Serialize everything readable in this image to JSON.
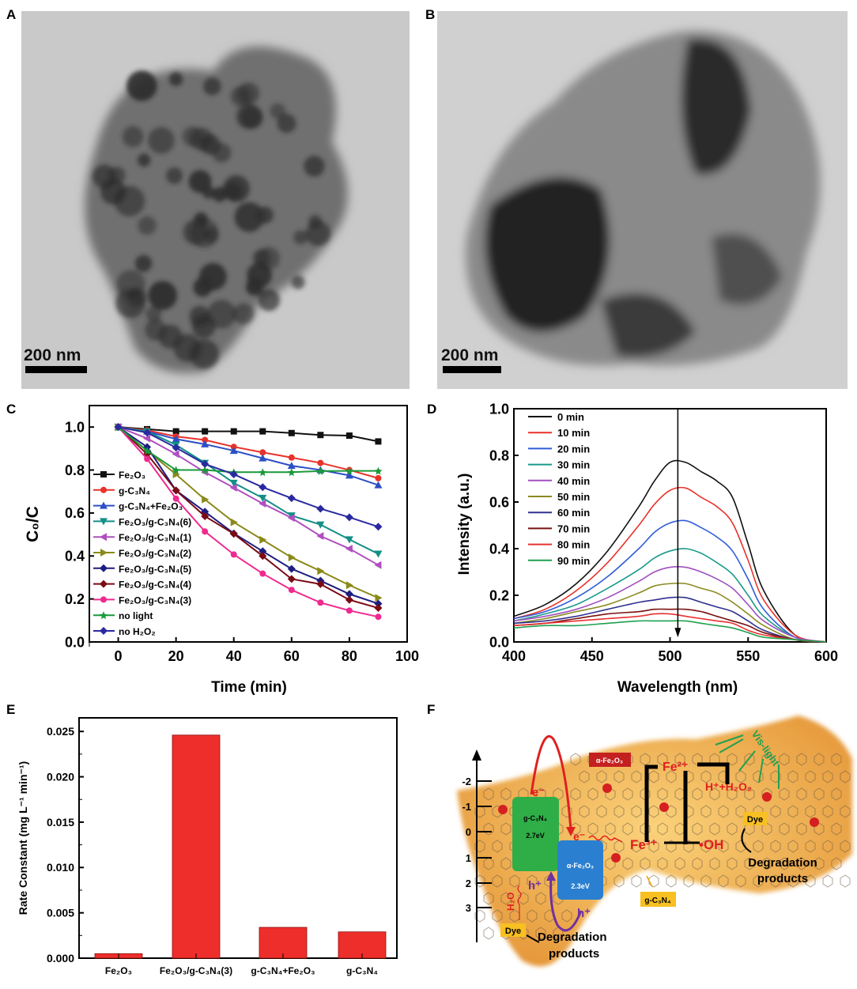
{
  "panels": {
    "A": {
      "label": "A",
      "scale_bar": "200 nm"
    },
    "B": {
      "label": "B",
      "scale_bar": "200 nm"
    },
    "C": {
      "label": "C"
    },
    "D": {
      "label": "D"
    },
    "E": {
      "label": "E"
    },
    "F": {
      "label": "F"
    }
  },
  "chart_data": [
    {
      "panel": "C",
      "type": "line",
      "xlabel": "Time (min)",
      "ylabel": "C₀/C",
      "xlim": [
        -10,
        100
      ],
      "ylim": [
        0,
        1.1
      ],
      "xticks": [
        "0",
        "20",
        "40",
        "60",
        "80",
        "100"
      ],
      "yticks": [
        "0.0",
        "0.2",
        "0.4",
        "0.6",
        "0.8",
        "1.0"
      ],
      "legend_position": "left",
      "x": [
        0,
        10,
        20,
        30,
        40,
        50,
        60,
        70,
        80,
        90
      ],
      "series": [
        {
          "name": "Fe₂O₃",
          "color": "#111111",
          "marker": "square",
          "values": [
            1.0,
            0.99,
            0.98,
            0.98,
            0.98,
            0.98,
            0.972,
            0.963,
            0.96,
            0.933
          ]
        },
        {
          "name": "g-C₃N₄",
          "color": "#e8322a",
          "marker": "circle",
          "values": [
            1.0,
            0.985,
            0.956,
            0.94,
            0.908,
            0.882,
            0.858,
            0.833,
            0.8,
            0.762
          ]
        },
        {
          "name": "g-C₃N₄+Fe₂O₃",
          "color": "#2b4fc4",
          "marker": "triangle-up",
          "values": [
            1.0,
            0.98,
            0.944,
            0.92,
            0.89,
            0.855,
            0.82,
            0.8,
            0.775,
            0.73
          ]
        },
        {
          "name": "Fe₂O₃/g-C₃N₄(6)",
          "color": "#138f86",
          "marker": "triangle-down",
          "values": [
            1.0,
            0.98,
            0.917,
            0.833,
            0.74,
            0.67,
            0.588,
            0.546,
            0.477,
            0.41
          ]
        },
        {
          "name": "Fe₂O₃/g-C₃N₄(1)",
          "color": "#b04fc0",
          "marker": "triangle-left",
          "values": [
            1.0,
            0.947,
            0.874,
            0.79,
            0.718,
            0.644,
            0.577,
            0.493,
            0.434,
            0.358
          ]
        },
        {
          "name": "Fe₂O₃/g-C₃N₄(2)",
          "color": "#8a8a1a",
          "marker": "triangle-right",
          "values": [
            1.0,
            0.89,
            0.78,
            0.663,
            0.557,
            0.475,
            0.393,
            0.33,
            0.264,
            0.205
          ]
        },
        {
          "name": "Fe₂O₃/g-C₃N₄(5)",
          "color": "#1d1d80",
          "marker": "diamond",
          "values": [
            1.0,
            0.907,
            0.705,
            0.606,
            0.505,
            0.422,
            0.34,
            0.285,
            0.223,
            0.178
          ]
        },
        {
          "name": "Fe₂O₃/g-C₃N₄(4)",
          "color": "#7a0a14",
          "marker": "diamond",
          "values": [
            1.0,
            0.874,
            0.705,
            0.585,
            0.503,
            0.4,
            0.293,
            0.269,
            0.196,
            0.158
          ]
        },
        {
          "name": "Fe₂O₃/g-C₃N₄(3)",
          "color": "#ee2a8f",
          "marker": "circle",
          "values": [
            1.0,
            0.852,
            0.667,
            0.514,
            0.407,
            0.318,
            0.242,
            0.183,
            0.146,
            0.117
          ]
        },
        {
          "name": "no  light",
          "color": "#1a9a3a",
          "marker": "star",
          "values": [
            1.0,
            0.89,
            0.8,
            0.8,
            0.79,
            0.79,
            0.79,
            0.795,
            0.796,
            0.796
          ]
        },
        {
          "name": "no  H₂O₂",
          "color": "#2a2aa0",
          "marker": "hexagon",
          "values": [
            1.0,
            0.974,
            0.904,
            0.828,
            0.78,
            0.72,
            0.669,
            0.62,
            0.58,
            0.536
          ]
        }
      ]
    },
    {
      "panel": "D",
      "type": "line",
      "xlabel": "Wavelength (nm)",
      "ylabel": "Intensity (a.u.)",
      "xlim": [
        400,
        600
      ],
      "ylim": [
        0,
        1.0
      ],
      "xticks": [
        "400",
        "450",
        "500",
        "550",
        "600"
      ],
      "yticks": [
        "0.0",
        "0.2",
        "0.4",
        "0.6",
        "0.8",
        "1.0"
      ],
      "legend_position": "top-left",
      "arrow_wavelength": 505,
      "x": [
        400,
        420,
        440,
        460,
        480,
        490,
        500,
        510,
        520,
        530,
        540,
        550,
        560,
        580,
        600
      ],
      "series": [
        {
          "name": "0 min",
          "color": "#111111",
          "values": [
            0.11,
            0.16,
            0.25,
            0.39,
            0.58,
            0.69,
            0.77,
            0.77,
            0.73,
            0.69,
            0.62,
            0.42,
            0.22,
            0.03,
            0
          ]
        },
        {
          "name": "10 min",
          "color": "#e8322a",
          "values": [
            0.1,
            0.14,
            0.22,
            0.34,
            0.5,
            0.59,
            0.65,
            0.66,
            0.62,
            0.58,
            0.51,
            0.35,
            0.18,
            0.03,
            0
          ]
        },
        {
          "name": "20 min",
          "color": "#2f5cd8",
          "values": [
            0.1,
            0.13,
            0.19,
            0.28,
            0.4,
            0.47,
            0.51,
            0.52,
            0.49,
            0.45,
            0.39,
            0.27,
            0.14,
            0.02,
            0
          ]
        },
        {
          "name": "30 min",
          "color": "#1a9a8a",
          "values": [
            0.09,
            0.12,
            0.16,
            0.23,
            0.31,
            0.36,
            0.39,
            0.4,
            0.38,
            0.34,
            0.29,
            0.2,
            0.11,
            0.02,
            0
          ]
        },
        {
          "name": "40 min",
          "color": "#a050c0",
          "values": [
            0.09,
            0.11,
            0.14,
            0.19,
            0.26,
            0.3,
            0.32,
            0.32,
            0.3,
            0.27,
            0.23,
            0.16,
            0.09,
            0.02,
            0
          ]
        },
        {
          "name": "50 min",
          "color": "#8a8a20",
          "values": [
            0.08,
            0.1,
            0.13,
            0.16,
            0.21,
            0.24,
            0.25,
            0.25,
            0.23,
            0.21,
            0.17,
            0.12,
            0.07,
            0.01,
            0
          ]
        },
        {
          "name": "60 min",
          "color": "#303090",
          "values": [
            0.08,
            0.09,
            0.11,
            0.14,
            0.17,
            0.18,
            0.19,
            0.19,
            0.17,
            0.15,
            0.13,
            0.09,
            0.05,
            0.01,
            0
          ]
        },
        {
          "name": "70 min",
          "color": "#7a1010",
          "values": [
            0.07,
            0.08,
            0.1,
            0.12,
            0.13,
            0.14,
            0.14,
            0.14,
            0.13,
            0.11,
            0.09,
            0.07,
            0.04,
            0.01,
            0
          ]
        },
        {
          "name": "80 min",
          "color": "#e83030",
          "values": [
            0.07,
            0.08,
            0.09,
            0.1,
            0.11,
            0.12,
            0.12,
            0.11,
            0.1,
            0.09,
            0.08,
            0.05,
            0.03,
            0.01,
            0
          ]
        },
        {
          "name": "90 min",
          "color": "#20a050",
          "values": [
            0.06,
            0.07,
            0.07,
            0.08,
            0.09,
            0.09,
            0.09,
            0.09,
            0.08,
            0.07,
            0.06,
            0.04,
            0.02,
            0.01,
            0
          ]
        }
      ]
    },
    {
      "panel": "E",
      "type": "bar",
      "xlabel": "",
      "ylabel": "Rate Constant (mg L⁻¹ min⁻¹)",
      "ylim": [
        0,
        0.0265
      ],
      "yticks": [
        "0.000",
        "0.005",
        "0.010",
        "0.015",
        "0.020",
        "0.025"
      ],
      "categories": [
        "Fe₂O₃",
        "Fe₂O₃/g-C₃N₄(3)",
        "g-C₃N₄+Fe₂O₃",
        "g-C₃N₄"
      ],
      "values": [
        0.0005,
        0.0246,
        0.0034,
        0.0029
      ],
      "color": "#ee2e2a"
    }
  ],
  "diagram": {
    "axis_ticks": [
      "-2",
      "-1",
      "0",
      "1",
      "2",
      "3"
    ],
    "electron": "e⁻",
    "electron2": "e⁻",
    "gcn_box": {
      "name": "g-C₃N₄",
      "gap": "2.7eV",
      "color": "#2fae48"
    },
    "fe_box": {
      "name": "α-Fe₂O₃",
      "gap": "2.3eV",
      "color": "#2a7fd0"
    },
    "fe_label": "α-Fe₂O₃",
    "fe2": "Fe²⁺",
    "fe3": "Fe³⁺",
    "oh": "•OH",
    "h_h2o2": "H⁺+H₂O₂",
    "vis_light": "Vis-light",
    "dye_right": "Dye",
    "dye_left": "Dye",
    "degradation_right_1": "Degradation",
    "degradation_right_2": "products",
    "degradation_left_1": "Degradation",
    "degradation_left_2": "products",
    "gcn_label": "g-C₃N₄",
    "hole1": "h⁺",
    "hole2": "h⁺",
    "water": "H₂O"
  }
}
